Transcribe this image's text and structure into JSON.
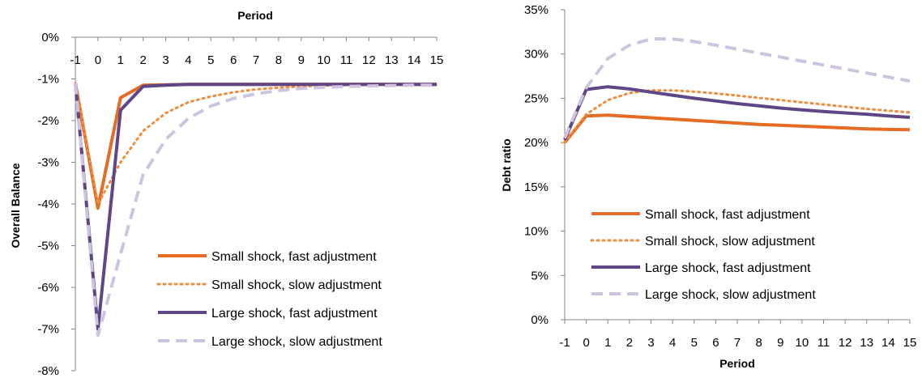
{
  "chart_data": [
    {
      "type": "line",
      "xlabel": "Period",
      "ylabel": "Overall Balance",
      "x": [
        -1,
        0,
        1,
        2,
        3,
        4,
        5,
        6,
        7,
        8,
        9,
        10,
        11,
        12,
        13,
        14,
        15
      ],
      "x_tick_labels": [
        "-1",
        "0",
        "1",
        "2",
        "3",
        "4",
        "5",
        "6",
        "7",
        "8",
        "9",
        "10",
        "11",
        "12",
        "13",
        "14",
        "15"
      ],
      "ylim": [
        -8,
        0
      ],
      "y_ticks": [
        0,
        -1,
        -2,
        -3,
        -4,
        -5,
        -6,
        -7,
        -8
      ],
      "y_tick_labels": [
        "0%",
        "-1%",
        "-2%",
        "-3%",
        "-4%",
        "-5%",
        "-6%",
        "-7%",
        "-8%"
      ],
      "x_axis_position": "top",
      "legend_position": "bottom-right",
      "grid": false,
      "series": [
        {
          "name": "Small shock, fast adjustment",
          "color": "#E46C24",
          "style": "solid",
          "values": [
            -1.1,
            -4.1,
            -1.45,
            -1.15,
            -1.14,
            -1.13,
            -1.13,
            -1.13,
            -1.13,
            -1.13,
            -1.13,
            -1.13,
            -1.13,
            -1.13,
            -1.13,
            -1.13,
            -1.13
          ]
        },
        {
          "name": "Small shock, slow adjustment",
          "color": "#F08C3C",
          "style": "dotted",
          "values": [
            -1.1,
            -4.0,
            -3.0,
            -2.25,
            -1.82,
            -1.56,
            -1.42,
            -1.32,
            -1.25,
            -1.21,
            -1.18,
            -1.16,
            -1.15,
            -1.14,
            -1.14,
            -1.14,
            -1.14
          ]
        },
        {
          "name": "Large shock, fast adjustment",
          "color": "#5E4687",
          "style": "solid",
          "values": [
            -1.1,
            -7.0,
            -1.75,
            -1.18,
            -1.15,
            -1.13,
            -1.13,
            -1.13,
            -1.13,
            -1.13,
            -1.13,
            -1.13,
            -1.13,
            -1.13,
            -1.13,
            -1.13,
            -1.13
          ]
        },
        {
          "name": "Large shock, slow adjustment",
          "color": "#CFC4DF",
          "style": "dashed",
          "values": [
            -1.1,
            -7.15,
            -5.2,
            -3.3,
            -2.45,
            -1.95,
            -1.65,
            -1.47,
            -1.36,
            -1.28,
            -1.23,
            -1.2,
            -1.18,
            -1.17,
            -1.16,
            -1.15,
            -1.15
          ]
        }
      ]
    },
    {
      "type": "line",
      "xlabel": "Period",
      "ylabel": "Debt ratio",
      "x": [
        -1,
        0,
        1,
        2,
        3,
        4,
        5,
        6,
        7,
        8,
        9,
        10,
        11,
        12,
        13,
        14,
        15
      ],
      "x_tick_labels": [
        "-1",
        "0",
        "1",
        "2",
        "3",
        "4",
        "5",
        "6",
        "7",
        "8",
        "9",
        "10",
        "11",
        "12",
        "13",
        "14",
        "15"
      ],
      "ylim": [
        0,
        35
      ],
      "y_ticks": [
        0,
        5,
        10,
        15,
        20,
        25,
        30,
        35
      ],
      "y_tick_labels": [
        "0%",
        "5%",
        "10%",
        "15%",
        "20%",
        "25%",
        "30%",
        "35%"
      ],
      "x_axis_position": "bottom",
      "legend_position": "center-right",
      "grid": false,
      "series": [
        {
          "name": "Small shock, fast adjustment",
          "color": "#E46C24",
          "style": "solid",
          "values": [
            20.0,
            23.0,
            23.1,
            22.95,
            22.8,
            22.65,
            22.5,
            22.35,
            22.2,
            22.05,
            21.95,
            21.85,
            21.75,
            21.65,
            21.55,
            21.48,
            21.45
          ]
        },
        {
          "name": "Small shock, slow adjustment",
          "color": "#F08C3C",
          "style": "dotted",
          "values": [
            20.0,
            23.2,
            24.8,
            25.6,
            25.9,
            25.9,
            25.75,
            25.55,
            25.3,
            25.05,
            24.8,
            24.55,
            24.3,
            24.05,
            23.8,
            23.6,
            23.4
          ]
        },
        {
          "name": "Large shock, fast adjustment",
          "color": "#5E4687",
          "style": "solid",
          "values": [
            20.3,
            26.0,
            26.3,
            26.05,
            25.7,
            25.35,
            25.0,
            24.7,
            24.4,
            24.15,
            23.9,
            23.7,
            23.5,
            23.35,
            23.2,
            23.0,
            22.85
          ]
        },
        {
          "name": "Large shock, slow adjustment",
          "color": "#CFC4DF",
          "style": "dashed",
          "values": [
            20.5,
            26.2,
            29.5,
            31.0,
            31.7,
            31.7,
            31.4,
            31.0,
            30.55,
            30.1,
            29.65,
            29.2,
            28.75,
            28.3,
            27.85,
            27.4,
            26.95
          ]
        }
      ]
    }
  ]
}
